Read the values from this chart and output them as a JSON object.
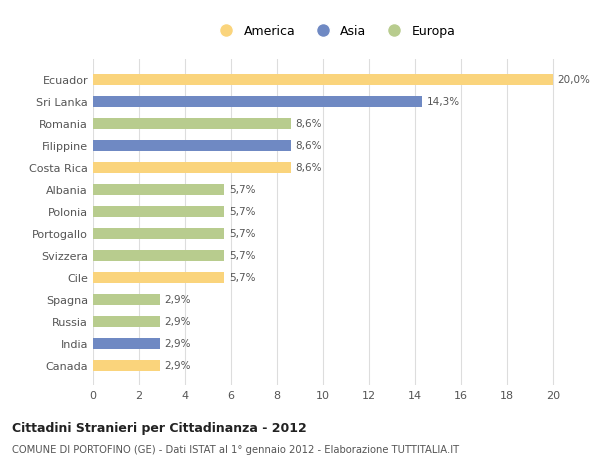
{
  "categories": [
    "Ecuador",
    "Sri Lanka",
    "Romania",
    "Filippine",
    "Costa Rica",
    "Albania",
    "Polonia",
    "Portogallo",
    "Svizzera",
    "Cile",
    "Spagna",
    "Russia",
    "India",
    "Canada"
  ],
  "values": [
    20.0,
    14.3,
    8.6,
    8.6,
    8.6,
    5.7,
    5.7,
    5.7,
    5.7,
    5.7,
    2.9,
    2.9,
    2.9,
    2.9
  ],
  "labels": [
    "20,0%",
    "14,3%",
    "8,6%",
    "8,6%",
    "8,6%",
    "5,7%",
    "5,7%",
    "5,7%",
    "5,7%",
    "5,7%",
    "2,9%",
    "2,9%",
    "2,9%",
    "2,9%"
  ],
  "continents": [
    "America",
    "Asia",
    "Europa",
    "Asia",
    "America",
    "Europa",
    "Europa",
    "Europa",
    "Europa",
    "America",
    "Europa",
    "Europa",
    "Asia",
    "America"
  ],
  "colors": {
    "America": "#FAD47C",
    "Asia": "#6F89C3",
    "Europa": "#B8CC8E"
  },
  "legend_entries": [
    "America",
    "Asia",
    "Europa"
  ],
  "title1": "Cittadini Stranieri per Cittadinanza - 2012",
  "title2": "COMUNE DI PORTOFINO (GE) - Dati ISTAT al 1° gennaio 2012 - Elaborazione TUTTITALIA.IT",
  "xlim": [
    0,
    21
  ],
  "xticks": [
    0,
    2,
    4,
    6,
    8,
    10,
    12,
    14,
    16,
    18,
    20
  ],
  "background_color": "#ffffff",
  "grid_color": "#dddddd",
  "bar_height": 0.5
}
